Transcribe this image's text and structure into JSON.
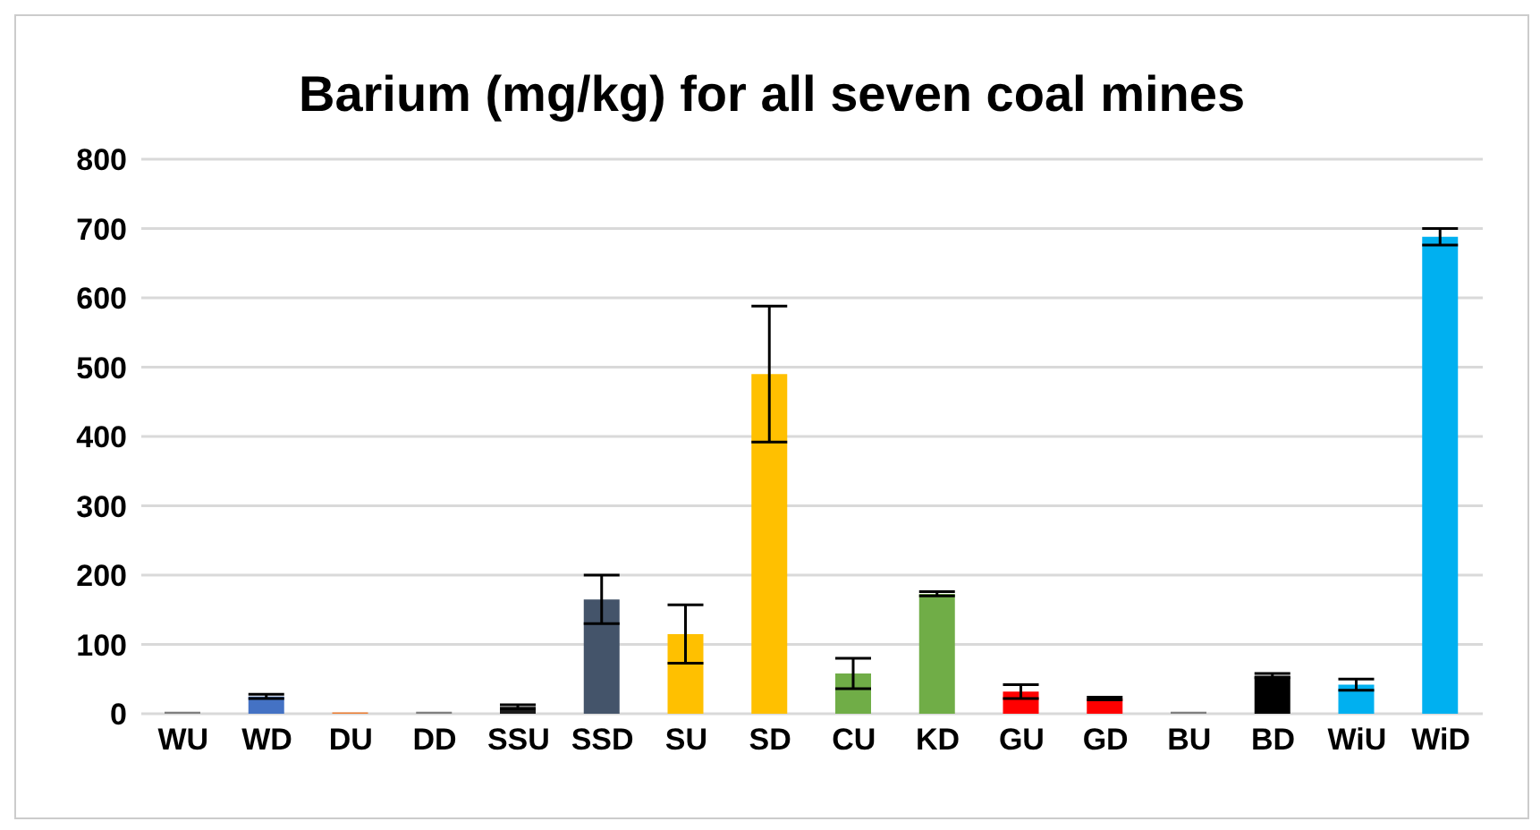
{
  "chart_data": {
    "type": "bar",
    "title": "Barium (mg/kg) for all seven coal mines",
    "categories": [
      "WU",
      "WD",
      "DU",
      "DD",
      "SSU",
      "SSD",
      "SU",
      "SD",
      "CU",
      "KD",
      "GU",
      "GD",
      "BU",
      "BD",
      "WiU",
      "WiD"
    ],
    "values": [
      3,
      25,
      2,
      3,
      10,
      165,
      115,
      490,
      58,
      173,
      32,
      22,
      3,
      55,
      42,
      688
    ],
    "errors": [
      null,
      3,
      null,
      null,
      3,
      35,
      42,
      98,
      22,
      3,
      10,
      2,
      null,
      3,
      8,
      12
    ],
    "colors": [
      "#7f7f7f",
      "#4472c4",
      "#ed7d31",
      "#7f7f7f",
      "#1a1a1a",
      "#44546a",
      "#ffc000",
      "#ffc000",
      "#70ad47",
      "#70ad47",
      "#ff0000",
      "#ff0000",
      "#7f7f7f",
      "#000000",
      "#00b0f0",
      "#00b0f0"
    ],
    "ylim": [
      0,
      800
    ],
    "yticks": [
      0,
      100,
      200,
      300,
      400,
      500,
      600,
      700,
      800
    ],
    "grid": "y"
  }
}
